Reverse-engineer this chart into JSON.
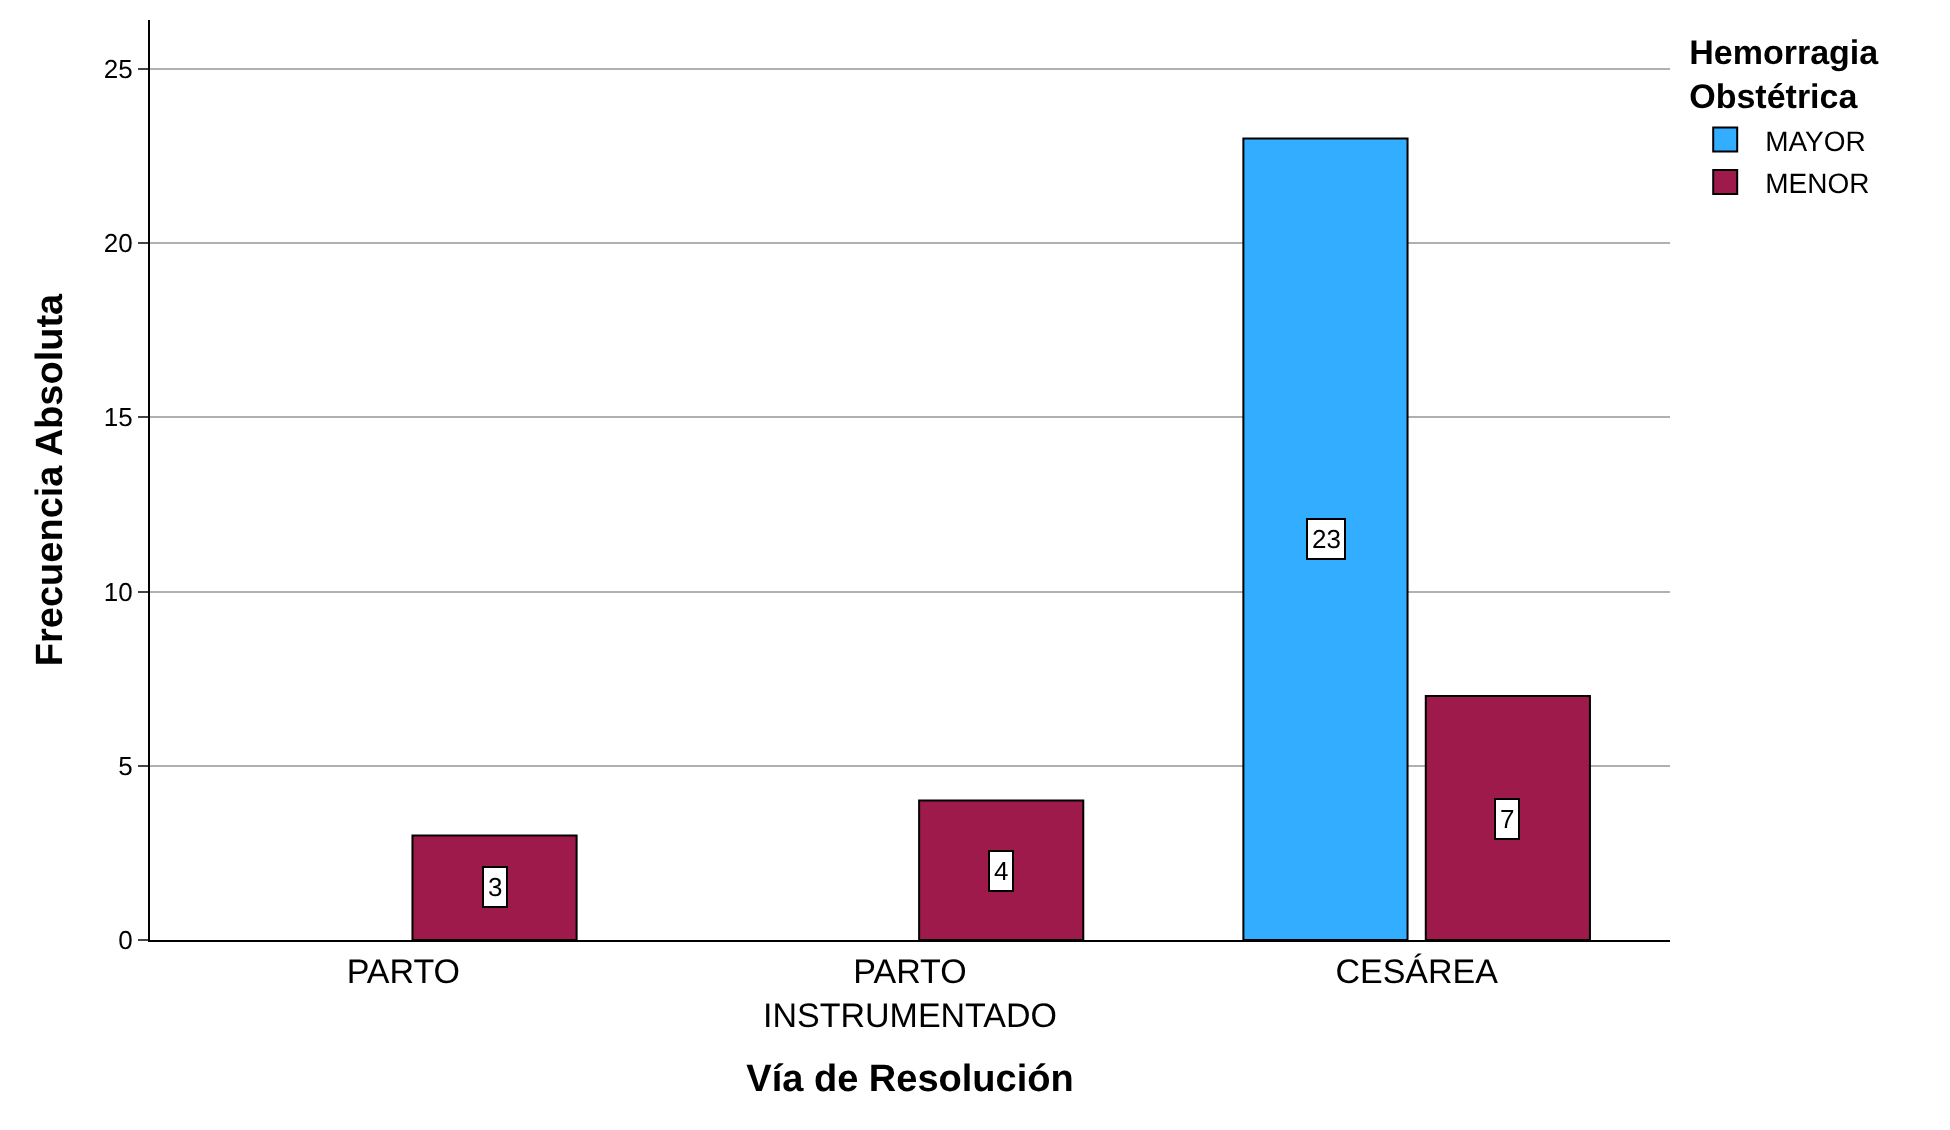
{
  "chart_data": {
    "type": "bar",
    "xlabel": "Vía de Resolución",
    "ylabel": "Frecuencia Absoluta",
    "legend_title": "Hemorragia\nObstétrica",
    "categories": [
      "PARTO",
      "PARTO\nINSTRUMENTADO",
      "CESÁREA"
    ],
    "series": [
      {
        "name": "MAYOR",
        "color": "#33adff",
        "values": [
          null,
          null,
          23
        ]
      },
      {
        "name": "MENOR",
        "color": "#9e1a4b",
        "values": [
          3,
          4,
          7
        ]
      }
    ],
    "ylim": [
      0,
      26.4
    ],
    "yticks": [
      0,
      5,
      10,
      15,
      20,
      25
    ],
    "grid": "y",
    "legend": "top right",
    "data_labels": true
  }
}
